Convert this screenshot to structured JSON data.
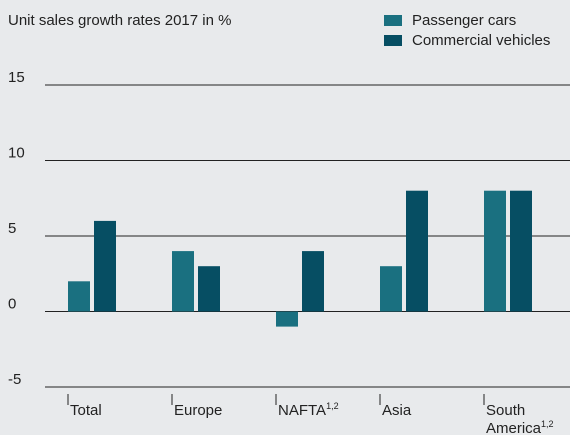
{
  "chart_data": {
    "type": "bar",
    "title": "Unit sales growth rates 2017 in %",
    "categories": [
      {
        "name": "Total",
        "sup": "",
        "line2": ""
      },
      {
        "name": "Europe",
        "sup": "",
        "line2": ""
      },
      {
        "name": "NAFTA",
        "sup": "1,2",
        "line2": ""
      },
      {
        "name": "Asia",
        "sup": "",
        "line2": ""
      },
      {
        "name": "South",
        "sup": "",
        "line2": "America",
        "line2_sup": "1,2"
      }
    ],
    "series": [
      {
        "name": "Passenger cars",
        "color": "#1a7080",
        "values": [
          2,
          4,
          -1,
          3,
          8
        ]
      },
      {
        "name": "Commercial vehicles",
        "color": "#064e63",
        "values": [
          6,
          3,
          4,
          8,
          8
        ]
      }
    ],
    "yticks": [
      15,
      10,
      5,
      0,
      -5
    ],
    "ylim": [
      -5,
      15
    ],
    "grid": true,
    "legend_position": "top-right"
  }
}
